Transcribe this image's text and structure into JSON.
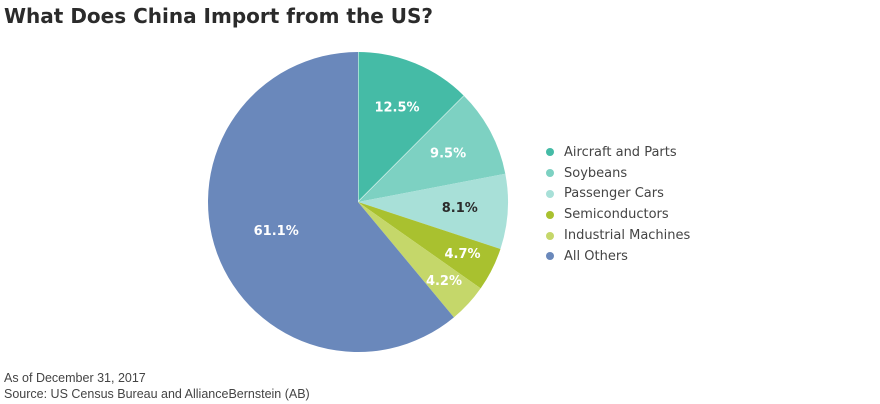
{
  "title": "What Does China Import from the US?",
  "footnotes": {
    "date": "As of December 31, 2017",
    "source": "Source: US Census Bureau and AllianceBernstein (AB)"
  },
  "chart_data": {
    "type": "pie",
    "title": "What Does China Import from the US?",
    "legend_position": "right",
    "slices": [
      {
        "name": "Aircraft and Parts",
        "value": 12.5,
        "label": "12.5%",
        "color": "#45bba6",
        "label_color": "#ffffff"
      },
      {
        "name": "Soybeans",
        "value": 9.5,
        "label": "9.5%",
        "color": "#7dd1c2",
        "label_color": "#ffffff"
      },
      {
        "name": "Passenger Cars",
        "value": 8.1,
        "label": "8.1%",
        "color": "#a8e0d8",
        "label_color": "#2b2b2b"
      },
      {
        "name": "Semiconductors",
        "value": 4.7,
        "label": "4.7%",
        "color": "#a9c12f",
        "label_color": "#ffffff"
      },
      {
        "name": "Industrial Machines",
        "value": 4.2,
        "label": "4.2%",
        "color": "#c5d76a",
        "label_color": "#ffffff"
      },
      {
        "name": "All Others",
        "value": 61.1,
        "label": "61.1%",
        "color": "#6a88bb",
        "label_color": "#ffffff"
      }
    ]
  }
}
